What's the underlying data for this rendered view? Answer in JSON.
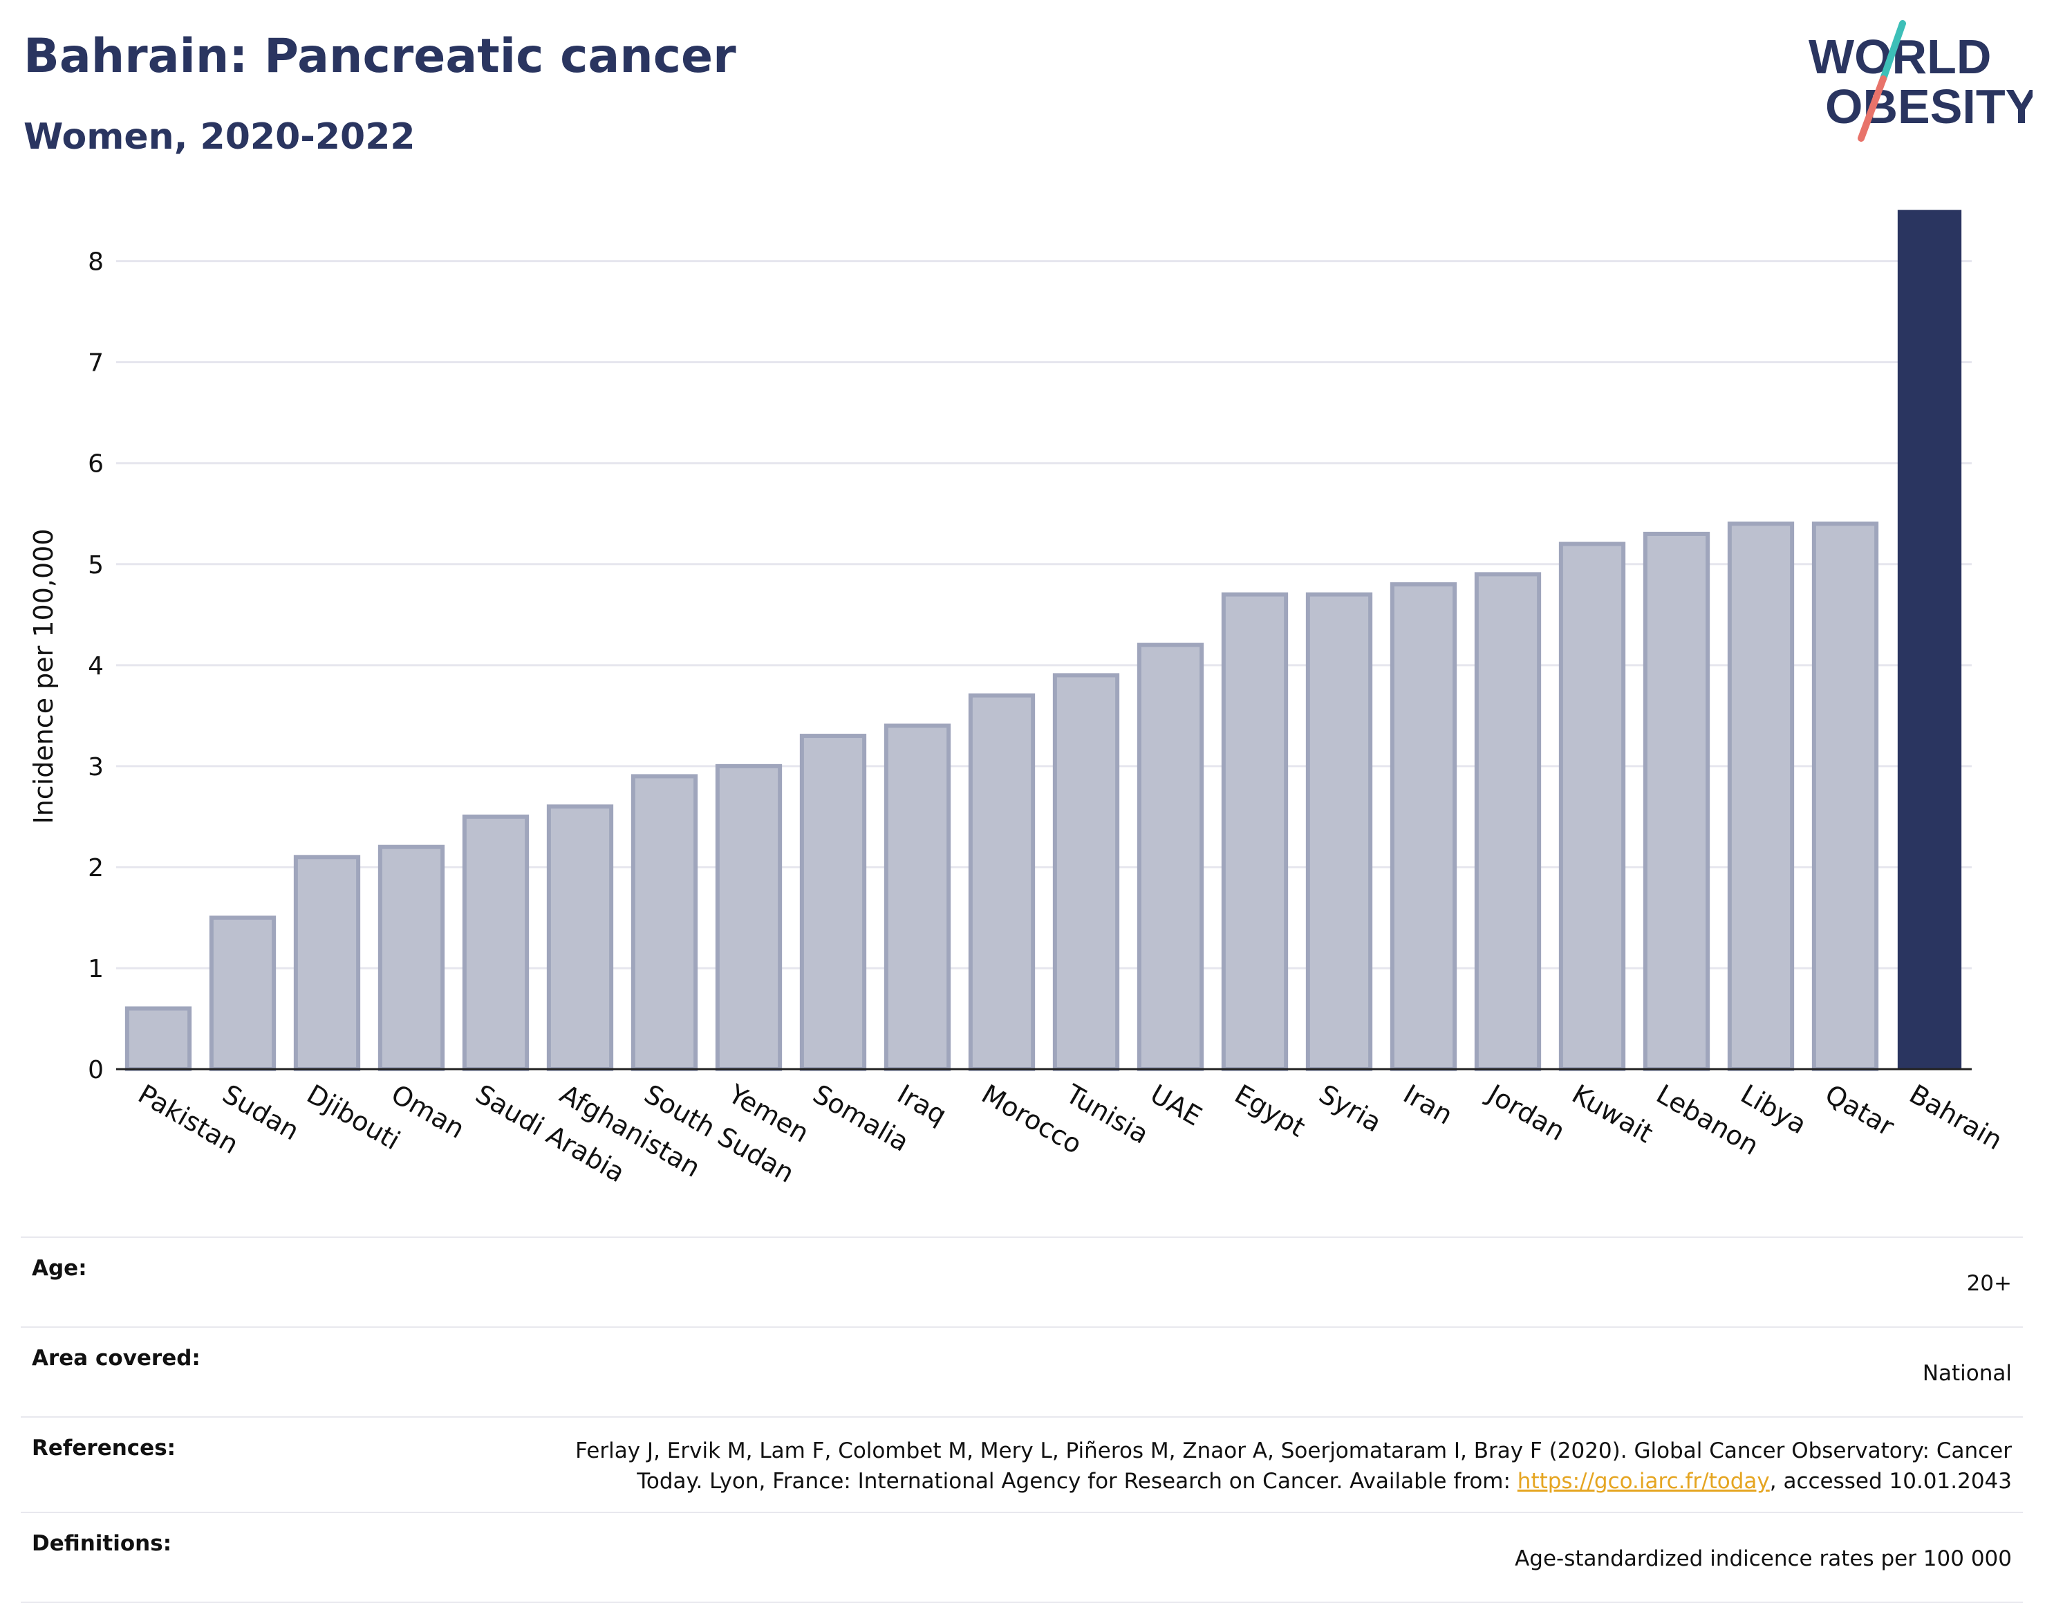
{
  "header": {
    "title": "Bahrain: Pancreatic cancer",
    "subtitle": "Women, 2020-2022"
  },
  "logo": {
    "line1": "WORLD",
    "line2": "OBESITY",
    "accent_teal": "#3dbfb8",
    "accent_coral": "#e8736a"
  },
  "colors": {
    "bar_default": "#bcc0cf",
    "bar_border": "#9fa5bc",
    "bar_highlight": "#2a3560",
    "title": "#2a3560"
  },
  "chart_data": {
    "type": "bar",
    "title": "Bahrain: Pancreatic cancer",
    "subtitle": "Women, 2020-2022",
    "xlabel": "",
    "ylabel": "Incidence per 100,000",
    "ylim": [
      0,
      8.6
    ],
    "yticks": [
      0,
      1,
      2,
      3,
      4,
      5,
      6,
      7,
      8
    ],
    "grid": true,
    "highlight": "Bahrain",
    "categories": [
      "Pakistan",
      "Sudan",
      "Djibouti",
      "Oman",
      "Saudi Arabia",
      "Afghanistan",
      "South Sudan",
      "Yemen",
      "Somalia",
      "Iraq",
      "Morocco",
      "Tunisia",
      "UAE",
      "Egypt",
      "Syria",
      "Iran",
      "Jordan",
      "Kuwait",
      "Lebanon",
      "Libya",
      "Qatar",
      "Bahrain"
    ],
    "values": [
      0.6,
      1.5,
      2.1,
      2.2,
      2.5,
      2.6,
      2.9,
      3.0,
      3.3,
      3.4,
      3.7,
      3.9,
      4.2,
      4.7,
      4.7,
      4.8,
      4.9,
      5.2,
      5.3,
      5.4,
      5.4,
      8.5
    ]
  },
  "info": {
    "age_label": "Age:",
    "age_value": "20+",
    "area_label": "Area covered:",
    "area_value": "National",
    "references_label": "References:",
    "references_line1": "Ferlay J, Ervik M, Lam F, Colombet M, Mery L, Piñeros M, Znaor A, Soerjomataram I, Bray F (2020). Global Cancer Observatory: Cancer",
    "references_line2_pre": "Today. Lyon, France: International Agency for Research on Cancer. Available from: ",
    "references_link": "https://gco.iarc.fr/today",
    "references_line2_post": ", accessed 10.01.2043",
    "definitions_label": "Definitions:",
    "definitions_value": "Age-standardized indicence rates per 100 000"
  }
}
